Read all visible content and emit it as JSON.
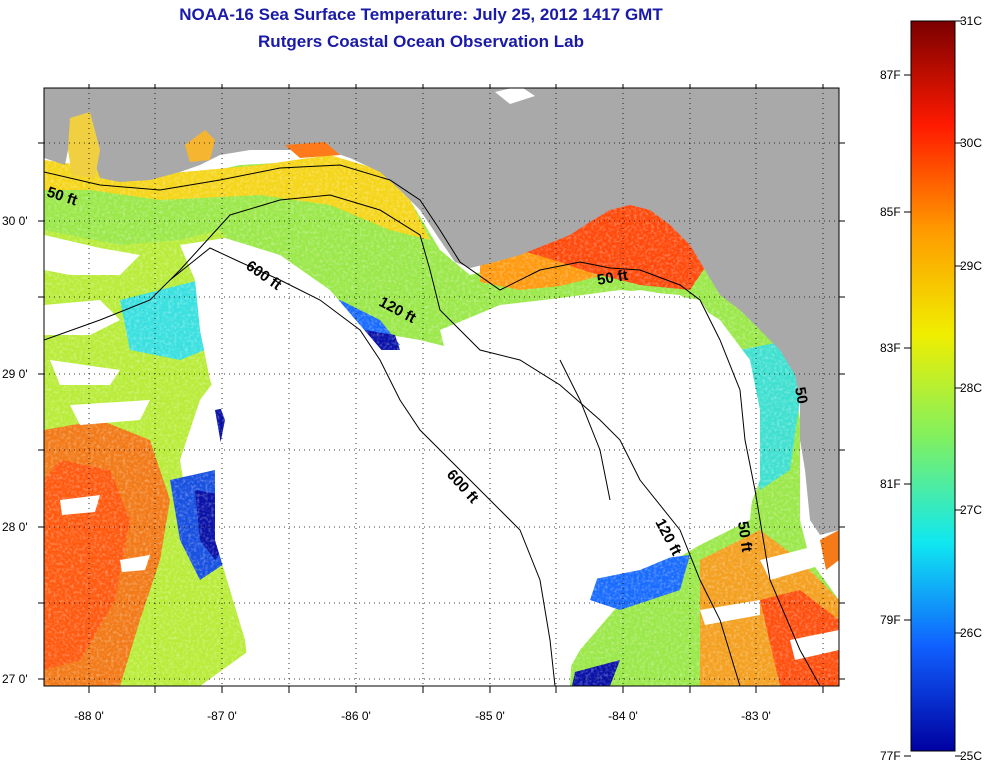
{
  "header": {
    "title_line1": "NOAA-16 Sea Surface Temperature:  July 25, 2012 1417 GMT",
    "title_line2": "Rutgers Coastal Ocean Observation Lab"
  },
  "map": {
    "lon_ticks": [
      "-88 0'",
      "-87 0'",
      "-86 0'",
      "-85 0'",
      "-84 0'",
      "-83 0'"
    ],
    "lat_ticks": [
      "30 0'",
      "29 0'",
      "28 0'",
      "27 0'"
    ],
    "contour_labels": [
      {
        "id": "contour-50ft-west",
        "text": "50 ft"
      },
      {
        "id": "contour-600ft-north",
        "text": "600 ft"
      },
      {
        "id": "contour-120ft-north",
        "text": "120 ft"
      },
      {
        "id": "contour-50ft-bigbend",
        "text": "50 ft"
      },
      {
        "id": "contour-600ft-south",
        "text": "600 ft"
      },
      {
        "id": "contour-120ft-south",
        "text": "120 ft"
      },
      {
        "id": "contour-50ft-south",
        "text": "50 ft"
      },
      {
        "id": "contour-50ft-coast",
        "text": "50"
      }
    ],
    "colors": {
      "land": "#a9a9a9",
      "cloud": "#ffffff",
      "contour": "#000000"
    }
  },
  "colorbar": {
    "celsius_labels": [
      "31C",
      "30C",
      "29C",
      "28C",
      "27C",
      "26C",
      "25C"
    ],
    "fahrenheit_labels": [
      "87F",
      "85F",
      "83F",
      "81F",
      "79F",
      "77F"
    ],
    "gradient_colors": [
      "#7a0000",
      "#ff1a00",
      "#ff9a00",
      "#f0ee00",
      "#80f060",
      "#10e8f0",
      "#1060ff",
      "#0000a0"
    ]
  }
}
